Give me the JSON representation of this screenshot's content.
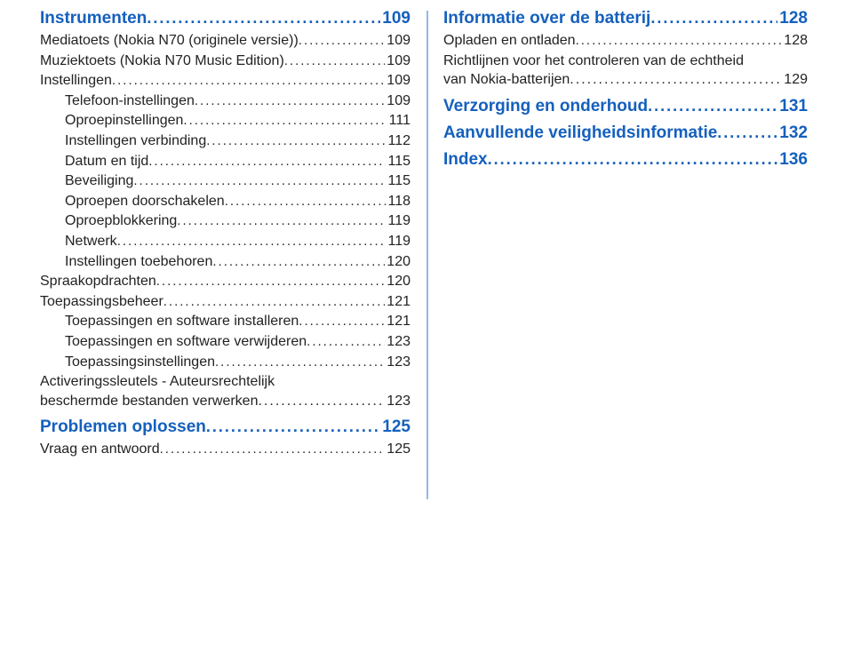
{
  "colors": {
    "link": "#1560bd",
    "text": "#222222",
    "divider": "#8cb9e8",
    "background": "#ffffff"
  },
  "left": [
    {
      "level": 0,
      "title": "Instrumenten",
      "page": "109",
      "first": true
    },
    {
      "level": 1,
      "title": "Mediatoets (Nokia N70 (originele versie))",
      "page": "109"
    },
    {
      "level": 1,
      "title": "Muziektoets (Nokia N70 Music Edition)",
      "page": "109"
    },
    {
      "level": 1,
      "title": "Instellingen",
      "page": "109"
    },
    {
      "level": 2,
      "title": "Telefoon-instellingen",
      "page": "109"
    },
    {
      "level": 2,
      "title": "Oproepinstellingen",
      "page": "111"
    },
    {
      "level": 2,
      "title": "Instellingen verbinding",
      "page": "112"
    },
    {
      "level": 2,
      "title": "Datum en tijd",
      "page": "115"
    },
    {
      "level": 2,
      "title": "Beveiliging",
      "page": "115"
    },
    {
      "level": 2,
      "title": "Oproepen doorschakelen",
      "page": "118"
    },
    {
      "level": 2,
      "title": "Oproepblokkering",
      "page": "119"
    },
    {
      "level": 2,
      "title": "Netwerk",
      "page": "119"
    },
    {
      "level": 2,
      "title": "Instellingen toebehoren",
      "page": "120"
    },
    {
      "level": 1,
      "title": "Spraakopdrachten",
      "page": "120"
    },
    {
      "level": 1,
      "title": "Toepassingsbeheer",
      "page": "121"
    },
    {
      "level": 2,
      "title": "Toepassingen en software installeren",
      "page": "121"
    },
    {
      "level": 2,
      "title": "Toepassingen en software verwijderen",
      "page": "123"
    },
    {
      "level": 2,
      "title": "Toepassingsinstellingen",
      "page": "123"
    },
    {
      "level": 1,
      "multiline": true,
      "title1": "Activeringssleutels - Auteursrechtelijk",
      "title2": "beschermde bestanden verwerken",
      "page": "123"
    },
    {
      "level": 0,
      "title": "Problemen oplossen",
      "page": "125"
    },
    {
      "level": 1,
      "title": "Vraag en antwoord",
      "page": "125"
    }
  ],
  "right": [
    {
      "level": 0,
      "title": "Informatie over de batterij",
      "page": "128",
      "first": true
    },
    {
      "level": 1,
      "title": "Opladen en ontladen",
      "page": "128"
    },
    {
      "level": 1,
      "multiline": true,
      "title1": "Richtlijnen voor het controleren van de echtheid",
      "title2": "van Nokia-batterijen",
      "page": "129"
    },
    {
      "level": 0,
      "title": "Verzorging en onderhoud",
      "page": "131"
    },
    {
      "level": 0,
      "title": "Aanvullende veiligheidsinformatie",
      "page": "132"
    },
    {
      "level": 0,
      "title": "Index",
      "page": "136"
    }
  ]
}
